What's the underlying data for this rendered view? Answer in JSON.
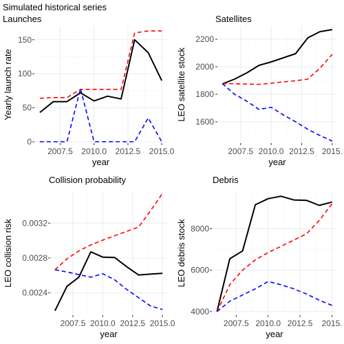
{
  "main_title": "Simulated historical series",
  "chart_data": [
    {
      "type": "line",
      "title": "Launches",
      "xlabel": "year",
      "ylabel": "Yearly launch rate",
      "xlim": [
        2005.6,
        2015.4
      ],
      "ylim": [
        -2,
        170
      ],
      "xticks": [
        2007.5,
        2010.0,
        2012.5,
        2015.0
      ],
      "xtick_labels": [
        "2007.5",
        "2010.0",
        "2012.5",
        "2015.0"
      ],
      "yticks": [
        0,
        50,
        100,
        150
      ],
      "ytick_labels": [
        "0",
        "50",
        "100",
        "150"
      ],
      "grid": true,
      "x": [
        2006,
        2007,
        2008,
        2009,
        2010,
        2011,
        2012,
        2013,
        2014,
        2015
      ],
      "series": [
        {
          "style": "solid",
          "color": "#000000",
          "values": [
            43,
            59,
            59,
            72,
            60,
            67,
            63,
            150,
            131,
            90
          ]
        },
        {
          "style": "dashed",
          "color": "#ff0000",
          "values": [
            64,
            65,
            65,
            77,
            77,
            77,
            77,
            160,
            163,
            163
          ]
        },
        {
          "style": "dashed",
          "color": "#0000ff",
          "values": [
            0,
            0,
            0,
            78,
            0,
            0,
            0,
            0,
            35,
            0
          ]
        }
      ]
    },
    {
      "type": "line",
      "title": "Satellites",
      "xlabel": "year",
      "ylabel": "LEO satellite stock",
      "xlim": [
        2005.6,
        2015.4
      ],
      "ylim": [
        1445,
        2295
      ],
      "xticks": [
        2007.5,
        2010.0,
        2012.5,
        2015.0
      ],
      "xtick_labels": [
        "2007.5",
        "2010.0",
        "2012.5",
        "2015."
      ],
      "yticks": [
        1600,
        1800,
        2000,
        2200
      ],
      "ytick_labels": [
        "1600",
        "1800",
        "2000",
        "2200"
      ],
      "grid": true,
      "x": [
        2006,
        2007,
        2008,
        2009,
        2010,
        2011,
        2012,
        2013,
        2014,
        2015
      ],
      "series": [
        {
          "style": "solid",
          "color": "#000000",
          "values": [
            1875,
            1910,
            1955,
            2010,
            2035,
            2065,
            2095,
            2210,
            2255,
            2270
          ]
        },
        {
          "style": "dashed",
          "color": "#ff0000",
          "values": [
            1878,
            1876,
            1874,
            1872,
            1880,
            1890,
            1898,
            1910,
            1990,
            2090
          ]
        },
        {
          "style": "dashed",
          "color": "#0000ff",
          "values": [
            1878,
            1800,
            1750,
            1690,
            1705,
            1650,
            1600,
            1545,
            1500,
            1460
          ]
        }
      ]
    },
    {
      "type": "line",
      "title": "Collision probability",
      "xlabel": "year",
      "ylabel": "LEO collision risk",
      "xlim": [
        2005.6,
        2015.4
      ],
      "ylim": [
        0.002145,
        0.003565
      ],
      "xticks": [
        2007.5,
        2010.0,
        2012.5,
        2015.0
      ],
      "xtick_labels": [
        "2007.5",
        "2010.0",
        "2012.5",
        "2015.0"
      ],
      "yticks": [
        0.0024,
        0.0028,
        0.0032
      ],
      "ytick_labels": [
        "0.0024",
        "0.0028",
        "0.0032"
      ],
      "grid": true,
      "x": [
        2006,
        2007,
        2008,
        2009,
        2010,
        2011,
        2012,
        2013,
        2014,
        2015
      ],
      "series": [
        {
          "style": "solid",
          "color": "#000000",
          "values": [
            0.002195,
            0.002475,
            0.00258,
            0.00287,
            0.00281,
            0.002805,
            0.0027,
            0.002605,
            0.002615,
            0.002625
          ]
        },
        {
          "style": "dashed",
          "color": "#ff0000",
          "values": [
            0.002665,
            0.00279,
            0.00288,
            0.00295,
            0.003005,
            0.003055,
            0.003105,
            0.003155,
            0.00334,
            0.00354
          ]
        },
        {
          "style": "dashed",
          "color": "#0000ff",
          "values": [
            0.002665,
            0.00264,
            0.00261,
            0.00258,
            0.00262,
            0.00255,
            0.00244,
            0.002345,
            0.00225,
            0.00221
          ]
        }
      ]
    },
    {
      "type": "line",
      "title": "Debris",
      "xlabel": "year",
      "ylabel": "LEO debris stock",
      "xlim": [
        2005.6,
        2015.4
      ],
      "ylim": [
        3830,
        9810
      ],
      "xticks": [
        2007.5,
        2010.0,
        2012.5,
        2015.0
      ],
      "xtick_labels": [
        "2007.5",
        "2010.0",
        "2012.5",
        "2015."
      ],
      "yticks": [
        4000,
        6000,
        8000
      ],
      "ytick_labels": [
        "4000",
        "6000",
        "8000"
      ],
      "grid": true,
      "x": [
        2006,
        2007,
        2008,
        2009,
        2010,
        2011,
        2012,
        2013,
        2014,
        2015
      ],
      "series": [
        {
          "style": "solid",
          "color": "#000000",
          "values": [
            4000,
            6550,
            6930,
            9160,
            9450,
            9570,
            9390,
            9370,
            9130,
            9290
          ]
        },
        {
          "style": "dashed",
          "color": "#ff0000",
          "values": [
            4000,
            5300,
            6000,
            6500,
            6850,
            7150,
            7450,
            7750,
            8400,
            9200
          ]
        },
        {
          "style": "dashed",
          "color": "#0000ff",
          "values": [
            4000,
            4500,
            4800,
            5100,
            5450,
            5300,
            5100,
            4850,
            4550,
            4300
          ]
        }
      ]
    }
  ]
}
